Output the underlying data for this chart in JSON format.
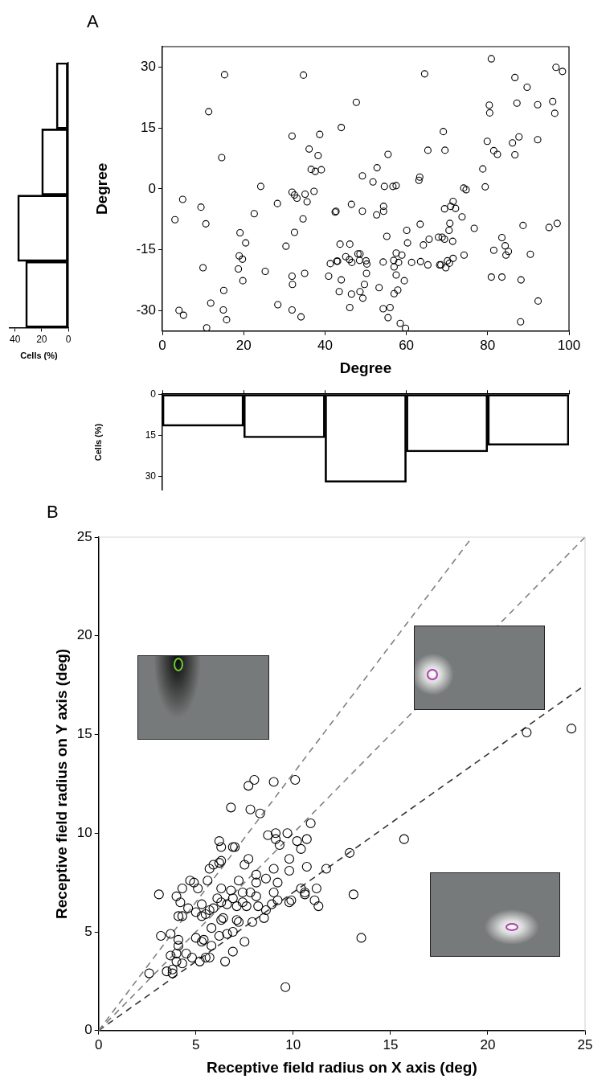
{
  "chart_data": [
    {
      "type": "scatter",
      "title": "A",
      "xlabel": "Degree",
      "ylabel": "Degree",
      "xlim": [
        0,
        100
      ],
      "xticks": [
        0,
        20,
        40,
        60,
        80,
        100
      ],
      "ylim": [
        -35,
        35
      ],
      "yticks": [
        -30,
        -15,
        0,
        15,
        30
      ],
      "marker": "circle",
      "series": [
        {
          "color": "#000000",
          "x": [
            3.1,
            5.0,
            4.1,
            5.2,
            9.5,
            10.7,
            10.0,
            11.4,
            10.9,
            11.9,
            14.6,
            15.3,
            15.1,
            15.0,
            15.8,
            18.7,
            18.9,
            19.7,
            19.1,
            20.5,
            19.8,
            22.6,
            24.2,
            25.3,
            28.3,
            30.4,
            28.4,
            31.9,
            31.9,
            32.5,
            33.1,
            32.5,
            31.9,
            32.0,
            31.9,
            34.1,
            34.7,
            34.6,
            35.1,
            35.6,
            35.0,
            37.3,
            36.1,
            36.6,
            37.6,
            39.1,
            38.3,
            38.7,
            40.9,
            41.3,
            42.5,
            42.7,
            42.9,
            43.1,
            43.7,
            44.0,
            44.0,
            43.5,
            46.1,
            46.5,
            47.7,
            45.1,
            46.0,
            46.6,
            46.5,
            46.1,
            48.1,
            48.5,
            48.6,
            50.1,
            50.3,
            50.2,
            49.7,
            48.6,
            49.3,
            49.2,
            49.2,
            51.8,
            52.8,
            52.7,
            53.3,
            54.4,
            54.4,
            54.6,
            55.5,
            55.2,
            54.3,
            54.3,
            56.0,
            55.5,
            56.7,
            57.5,
            57.5,
            56.9,
            58.1,
            57.0,
            57.5,
            58.9,
            59.5,
            57.9,
            57.0,
            58.5,
            59.8,
            60.1,
            60.3,
            61.3,
            63.1,
            63.3,
            63.4,
            63.5,
            65.3,
            64.5,
            65.3,
            64.2,
            65.6,
            67.9,
            68.8,
            69.4,
            68.2,
            68.5,
            69.7,
            70.1,
            70.6,
            71.5,
            71.4,
            70.5,
            70.7,
            69.4,
            70.9,
            71.5,
            72.1,
            69.1,
            69.5,
            73.7,
            74.2,
            74.1,
            74.7,
            76.7,
            78.8,
            79.4,
            79.9,
            80.4,
            80.5,
            80.9,
            81.5,
            82.4,
            81.5,
            80.9,
            83.5,
            84.3,
            85.1,
            84.5,
            83.5,
            86.1,
            86.7,
            87.7,
            87.2,
            86.7,
            89.7,
            88.7,
            88.2,
            88.1,
            90.5,
            92.3,
            92.3,
            92.4,
            96.0,
            96.5,
            96.8,
            98.4,
            95.1,
            97.1
          ],
          "values": [
            -7.6,
            -2.6,
            -29.9,
            -31.1,
            -4.5,
            -8.6,
            -19.4,
            19.0,
            -34.2,
            -28.1,
            7.7,
            28.1,
            -25.0,
            -29.8,
            -32.2,
            -19.7,
            -16.5,
            -17.3,
            -10.8,
            -13.3,
            -22.6,
            -6.1,
            0.6,
            -20.3,
            -3.6,
            -14.1,
            -28.5,
            13.0,
            -0.8,
            -1.5,
            -2.3,
            -10.7,
            -21.5,
            -23.5,
            -29.8,
            -31.5,
            28.0,
            -7.4,
            -1.3,
            -3.2,
            -20.8,
            -0.6,
            9.8,
            4.8,
            4.3,
            4.7,
            8.2,
            13.4,
            -21.5,
            -18.4,
            -5.7,
            -5.5,
            -17.8,
            -17.8,
            -13.6,
            15.1,
            -22.4,
            -25.3,
            -13.6,
            -3.8,
            21.3,
            -16.7,
            -17.4,
            -18.1,
            -25.9,
            -29.2,
            -16.0,
            -17.6,
            -16.0,
            -17.7,
            -18.5,
            -20.8,
            -23.5,
            -25.3,
            -26.9,
            3.2,
            -5.5,
            1.7,
            5.2,
            -6.4,
            -24.3,
            -4.3,
            -5.5,
            0.6,
            8.5,
            -11.7,
            -18.0,
            -29.5,
            -29.2,
            -31.7,
            0.6,
            0.8,
            -15.8,
            -17.6,
            -18.1,
            -19.2,
            -21.2,
            -16.3,
            -22.6,
            -24.9,
            -25.8,
            -33.1,
            -34.3,
            -10.2,
            -13.3,
            -18.1,
            2.1,
            2.9,
            -8.7,
            -17.9,
            -18.7,
            28.3,
            9.5,
            -13.8,
            -12.4,
            -11.9,
            -11.9,
            -12.4,
            -18.7,
            -18.7,
            -19.4,
            -17.7,
            -18.3,
            -17.1,
            -12.9,
            -10.2,
            -8.5,
            -4.9,
            -4.3,
            -3.1,
            -4.8,
            14.1,
            9.5,
            -6.9,
            -16.3,
            0.2,
            -0.2,
            -9.7,
            4.9,
            0.5,
            11.7,
            20.6,
            18.7,
            32.0,
            9.4,
            8.5,
            -15.1,
            -21.7,
            -12.0,
            -14.0,
            -15.4,
            -16.3,
            -21.7,
            11.3,
            8.4,
            12.8,
            21.1,
            27.4,
            25.0,
            -9.0,
            -22.4,
            -32.7,
            -16.1,
            20.7,
            12.1,
            -27.6,
            21.5,
            18.6,
            29.9,
            28.9,
            -9.5,
            -8.5
          ]
        }
      ]
    },
    {
      "type": "bar",
      "orientation": "horizontal",
      "categories": [
        null,
        null,
        null,
        null
      ],
      "values": [
        9,
        20,
        38,
        32
      ],
      "color": "#000000",
      "xlabel": "Cells (%)",
      "xlim": [
        44,
        0
      ],
      "xticks": [
        40,
        20,
        0
      ],
      "tick_labels": "x"
    },
    {
      "type": "bar",
      "categories": [
        null,
        null,
        null,
        null,
        null
      ],
      "values": [
        11.7,
        15.9,
        32.1,
        21.0,
        18.6
      ],
      "color": "#000000",
      "ylabel": "Cells (%)",
      "ylim": [
        35,
        0
      ],
      "yticks": [
        0,
        15,
        30
      ],
      "tick_labels": "y"
    },
    {
      "type": "scatter",
      "title": "B",
      "xlabel": "Receptive field radius on X axis (deg)",
      "ylabel": "Receptive field radius on Y axis (deg)",
      "xlim": [
        0,
        25
      ],
      "xticks": [
        0,
        5,
        10,
        15,
        20,
        25
      ],
      "ylim": [
        0,
        25
      ],
      "yticks": [
        0,
        5,
        10,
        15,
        20,
        25
      ],
      "marker": "circle",
      "series": [
        {
          "color": "#000000",
          "x": [
            22.0,
            24.3,
            15.7,
            12.9,
            8.0,
            7.7,
            9.0,
            10.1,
            6.8,
            7.8,
            8.3,
            10.9,
            6.2,
            6.3,
            6.9,
            7.0,
            8.7,
            9.1,
            9.7,
            9.1,
            9.3,
            10.2,
            10.7,
            10.4,
            7.7,
            7.5,
            9.8,
            9.0,
            9.8,
            10.7,
            11.7,
            13.1,
            13.5,
            5.7,
            5.9,
            6.2,
            6.3,
            5.6,
            4.7,
            4.9,
            5.1,
            4.3,
            3.1,
            4.0,
            4.2,
            4.6,
            4.1,
            4.3,
            3.2,
            3.7,
            4.1,
            4.1,
            4.5,
            3.7,
            4.0,
            4.0,
            4.3,
            2.6,
            3.5,
            3.8,
            3.8,
            5.2,
            5.5,
            5.7,
            4.8,
            6.5,
            6.9,
            7.5,
            5.8,
            5.3,
            5.4,
            5.0,
            6.2,
            6.6,
            6.9,
            5.8,
            6.3,
            6.4,
            7.1,
            7.2,
            7.9,
            8.5,
            5.0,
            5.3,
            5.5,
            5.7,
            5.3,
            5.9,
            6.3,
            6.1,
            6.6,
            6.8,
            6.9,
            7.1,
            7.4,
            7.6,
            7.4,
            7.8,
            8.1,
            8.2,
            8.6,
            8.9,
            9.0,
            9.2,
            9.8,
            9.9,
            9.2,
            8.6,
            8.1,
            8.1,
            7.2,
            6.3,
            10.4,
            10.6,
            11.2,
            11.1,
            11.3,
            10.6,
            9.6
          ],
          "values": [
            15.1,
            15.3,
            9.7,
            9.0,
            12.7,
            12.4,
            12.6,
            12.7,
            11.3,
            11.2,
            11.0,
            10.5,
            9.6,
            9.3,
            9.3,
            9.3,
            9.9,
            10.0,
            10.0,
            9.7,
            9.4,
            9.6,
            9.7,
            9.2,
            8.7,
            8.4,
            8.7,
            8.2,
            8.1,
            8.3,
            8.2,
            6.9,
            4.7,
            8.2,
            8.4,
            8.5,
            8.6,
            7.6,
            7.6,
            7.5,
            7.2,
            7.2,
            6.9,
            6.8,
            6.5,
            6.2,
            5.8,
            5.8,
            4.8,
            4.9,
            4.6,
            4.3,
            3.9,
            3.8,
            3.9,
            3.5,
            3.4,
            2.9,
            3.0,
            3.1,
            2.9,
            3.5,
            3.7,
            3.7,
            3.7,
            3.5,
            4.0,
            4.5,
            4.3,
            4.5,
            4.6,
            4.7,
            4.8,
            4.9,
            5.0,
            5.2,
            5.6,
            5.7,
            5.6,
            5.5,
            5.5,
            5.7,
            6.0,
            5.8,
            5.9,
            6.1,
            6.4,
            6.2,
            6.5,
            6.7,
            6.4,
            7.1,
            6.7,
            6.3,
            6.5,
            6.3,
            7.0,
            7.0,
            6.8,
            6.3,
            6.1,
            6.4,
            7.0,
            6.6,
            6.5,
            6.6,
            7.5,
            7.7,
            7.5,
            7.9,
            7.6,
            7.2,
            7.2,
            7.0,
            7.2,
            6.6,
            6.3,
            6.9,
            2.2
          ]
        },
        {
          "type": "line",
          "color": "#808080",
          "line_style": "dashed",
          "marker": "none",
          "x": [
            0,
            19.2
          ],
          "values": [
            0,
            25
          ]
        },
        {
          "type": "line",
          "color": "#808080",
          "line_style": "dashed",
          "marker": "none",
          "x": [
            0,
            25
          ],
          "values": [
            0,
            25
          ]
        },
        {
          "type": "line",
          "color": "#333333",
          "line_style": "dashed",
          "marker": "none",
          "x": [
            0,
            25
          ],
          "values": [
            0,
            17.5
          ]
        }
      ]
    }
  ]
}
